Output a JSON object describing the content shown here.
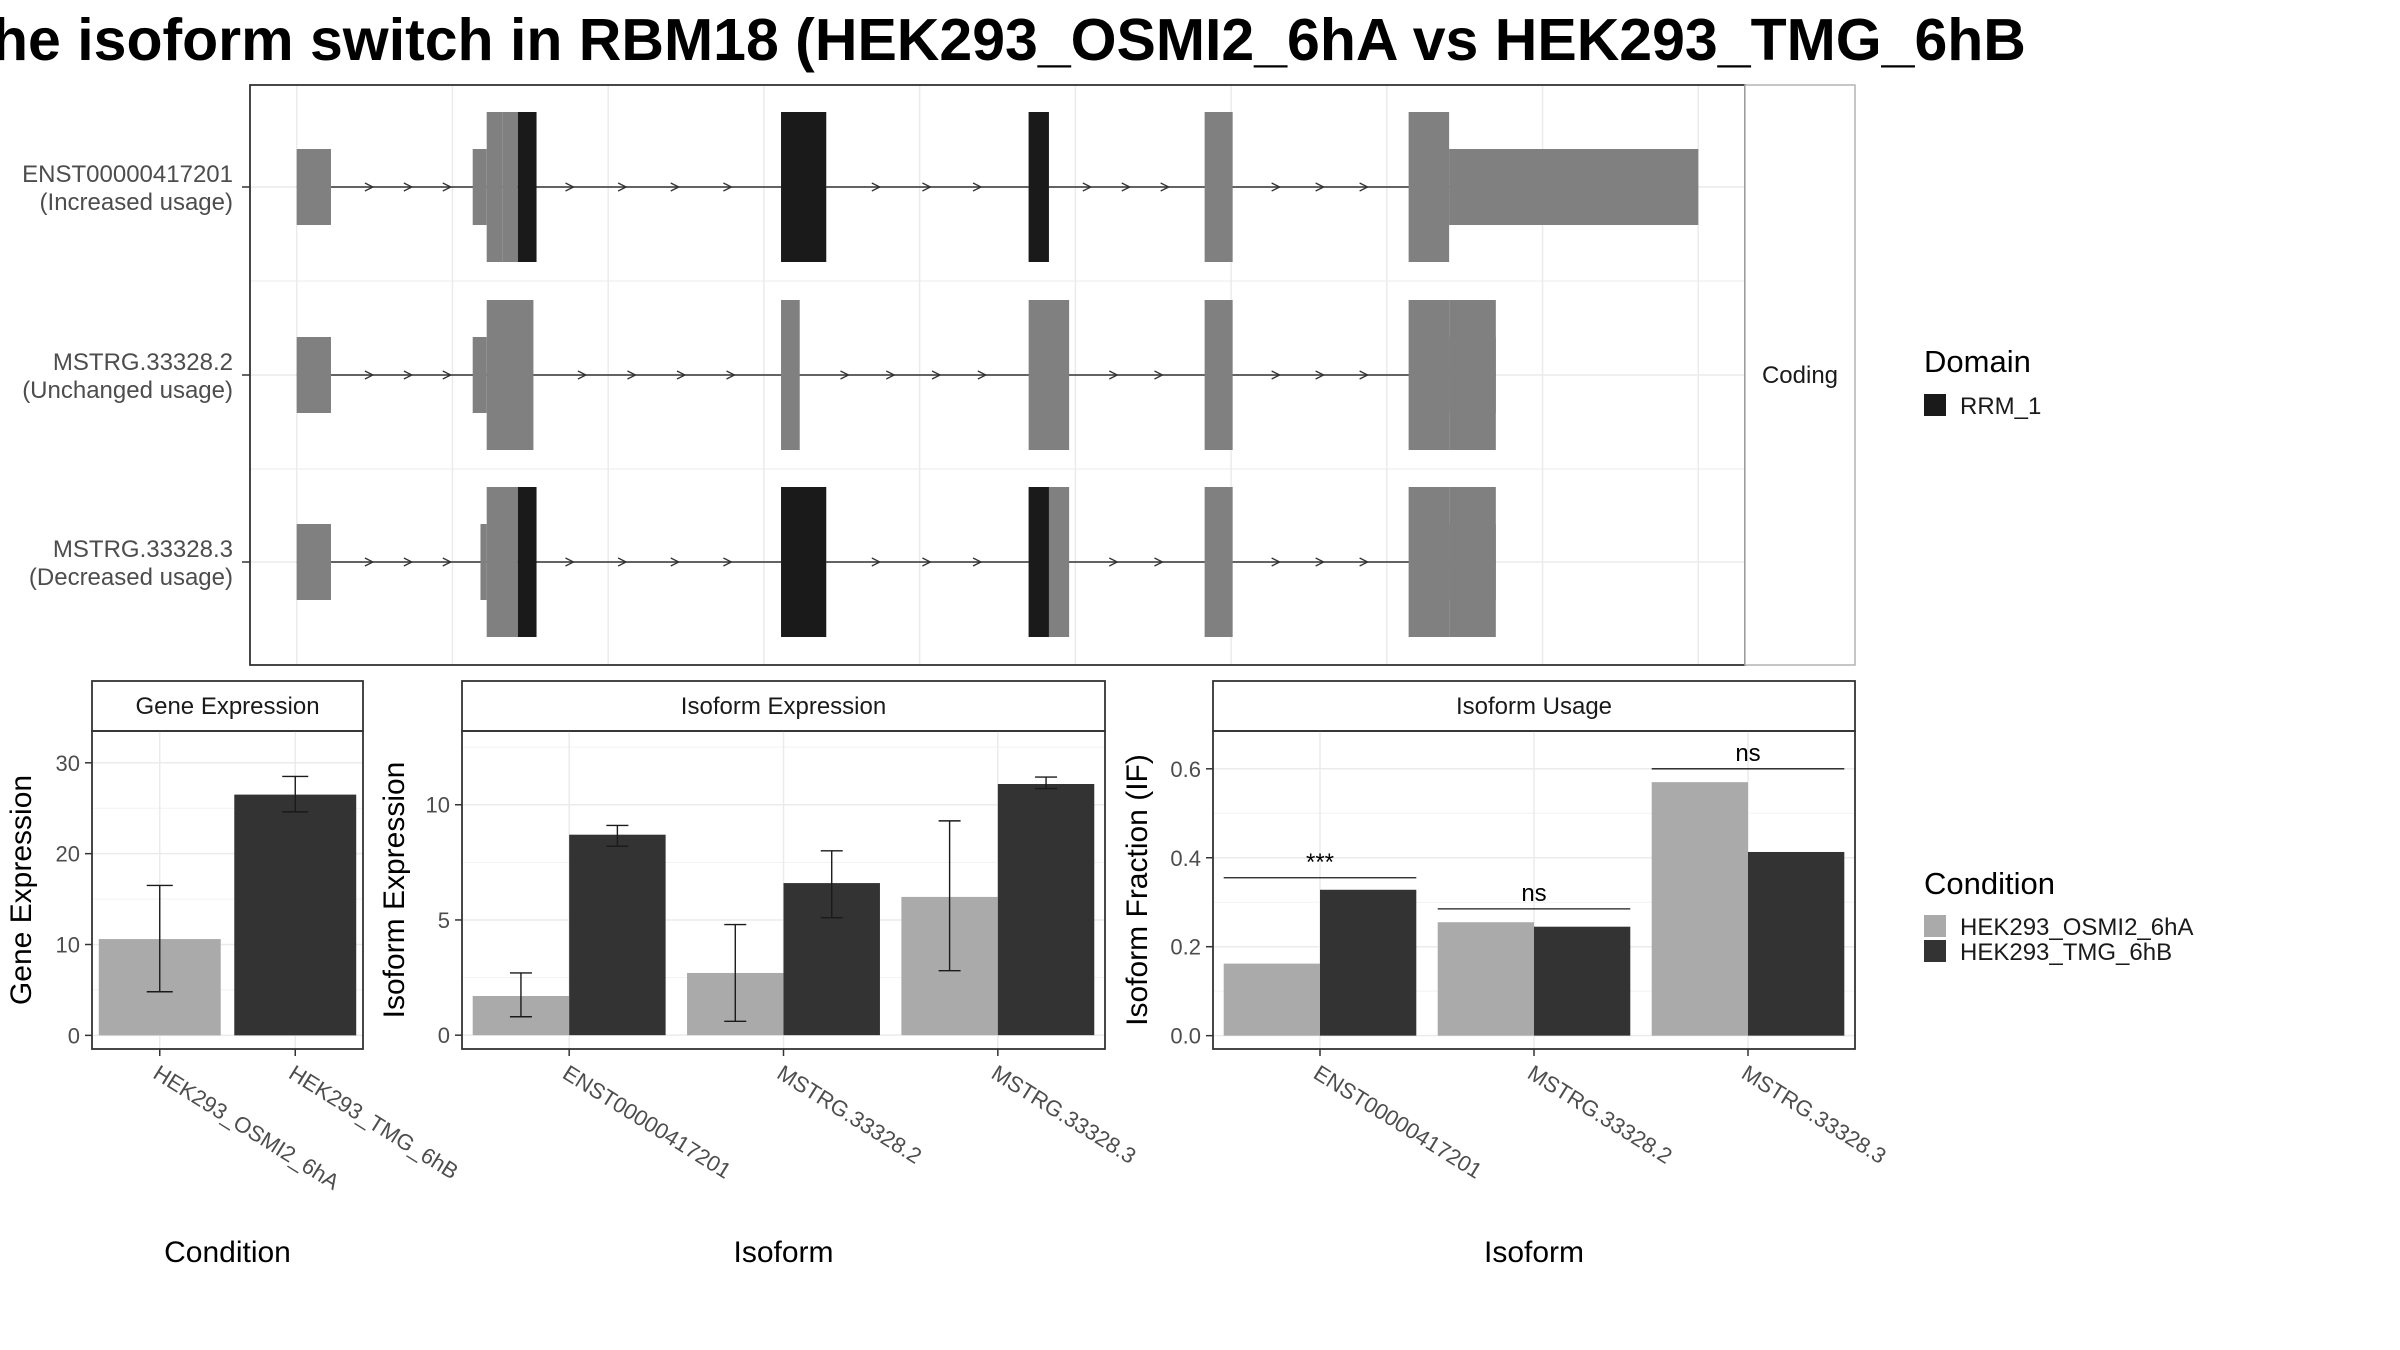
{
  "title": "he isoform switch in RBM18 (HEK293_OSMI2_6hA vs HEK293_TMG_6hB",
  "colors": {
    "coding_exon": "#808080",
    "domain_rrm1": "#1a1a1a",
    "cond_a": "#aaaaaa",
    "cond_b": "#333333",
    "grid": "#ebebeb",
    "strip_bg": "#ffffff"
  },
  "chart_data": [
    {
      "type": "gene-structure",
      "facet_label": "Coding",
      "transcripts": [
        {
          "name": "ENST00000417201",
          "usage": "(Increased usage)",
          "exons": [
            [
              70,
              92
            ],
            [
              192,
              202
            ],
            [
              202,
              212
            ],
            [
              381,
              410
            ],
            [
              540,
              553
            ],
            [
              653,
              671
            ],
            [
              784,
              810
            ],
            [
              810,
              970
            ]
          ],
          "utr_exons": [
            [
              183,
              192
            ],
            [
              800,
              810
            ]
          ],
          "domain_exons": [
            [
              212,
              224
            ],
            [
              381,
              410
            ],
            [
              540,
              553
            ]
          ]
        },
        {
          "name": "MSTRG.33328.2",
          "usage": "(Unchanged usage)",
          "exons": [
            [
              70,
              92
            ],
            [
              192,
              222
            ],
            [
              381,
              393
            ],
            [
              540,
              566
            ],
            [
              653,
              671
            ],
            [
              784,
              810
            ],
            [
              810,
              840
            ]
          ],
          "utr_exons": [
            [
              183,
              192
            ],
            [
              810,
              840
            ]
          ],
          "domain_exons": []
        },
        {
          "name": "MSTRG.33328.3",
          "usage": "(Decreased usage)",
          "exons": [
            [
              70,
              92
            ],
            [
              192,
              212
            ],
            [
              381,
              410
            ],
            [
              540,
              566
            ],
            [
              653,
              671
            ],
            [
              784,
              810
            ],
            [
              810,
              840
            ]
          ],
          "utr_exons": [
            [
              188,
              192
            ],
            [
              810,
              840
            ]
          ],
          "domain_exons": [
            [
              212,
              224
            ],
            [
              381,
              410
            ],
            [
              540,
              553
            ]
          ]
        }
      ]
    },
    {
      "type": "bar",
      "title": "Gene Expression",
      "xlabel": "Condition",
      "ylabel": "Gene Expression",
      "ylim": [
        -1.5,
        33.5
      ],
      "yticks": [
        0,
        10,
        20,
        30
      ],
      "categories": [
        "HEK293_OSMI2_6hA",
        "HEK293_TMG_6hB"
      ],
      "values": [
        10.6,
        26.5
      ],
      "err_low": [
        4.8,
        24.6
      ],
      "err_high": [
        16.5,
        28.5
      ]
    },
    {
      "type": "bar",
      "title": "Isoform Expression",
      "xlabel": "Isoform",
      "ylabel": "Isoform Expression",
      "ylim": [
        -0.6,
        13.2
      ],
      "yticks": [
        0,
        5,
        10
      ],
      "categories": [
        "ENST00000417201",
        "MSTRG.33328.2",
        "MSTRG.33328.3"
      ],
      "series": [
        {
          "name": "HEK293_OSMI2_6hA",
          "values": [
            1.7,
            2.7,
            6.0
          ],
          "err_low": [
            0.8,
            0.6,
            2.8
          ],
          "err_high": [
            2.7,
            4.8,
            9.3
          ]
        },
        {
          "name": "HEK293_TMG_6hB",
          "values": [
            8.7,
            6.6,
            10.9
          ],
          "err_low": [
            8.2,
            5.1,
            10.7
          ],
          "err_high": [
            9.1,
            8.0,
            11.2
          ]
        }
      ]
    },
    {
      "type": "bar",
      "title": "Isoform Usage",
      "xlabel": "Isoform",
      "ylabel": "Isoform Fraction (IF)",
      "ylim": [
        -0.03,
        0.685
      ],
      "yticks": [
        "0.0",
        "0.2",
        "0.4",
        "0.6"
      ],
      "categories": [
        "ENST00000417201",
        "MSTRG.33328.2",
        "MSTRG.33328.3"
      ],
      "series": [
        {
          "name": "HEK293_OSMI2_6hA",
          "values": [
            0.162,
            0.255,
            0.57
          ]
        },
        {
          "name": "HEK293_TMG_6hB",
          "values": [
            0.328,
            0.245,
            0.413
          ]
        }
      ],
      "significance": [
        {
          "label": "***",
          "y": 0.355
        },
        {
          "label": "ns",
          "y": 0.285
        },
        {
          "label": "ns",
          "y": 0.6
        }
      ]
    }
  ],
  "legend_domain": {
    "title": "Domain",
    "items": [
      {
        "label": "RRM_1",
        "color": "#1a1a1a"
      }
    ]
  },
  "legend_condition": {
    "title": "Condition",
    "items": [
      {
        "label": "HEK293_OSMI2_6hA",
        "color": "#aaaaaa"
      },
      {
        "label": "HEK293_TMG_6hB",
        "color": "#333333"
      }
    ]
  }
}
